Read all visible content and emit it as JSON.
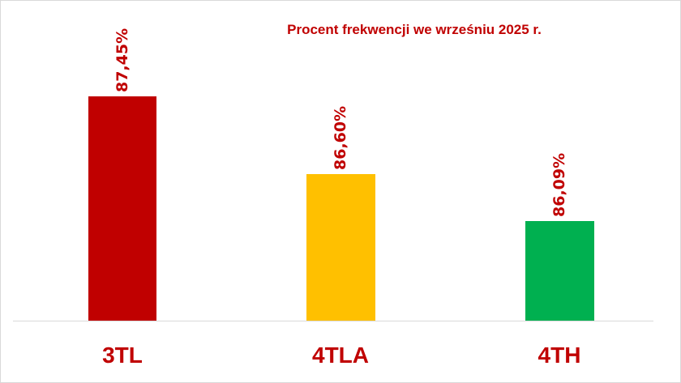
{
  "chart_data": {
    "type": "bar",
    "title": "Procent frekwencji we wrześniu 2025  r.",
    "categories": [
      "3TL",
      "4TLA",
      "4TH"
    ],
    "values": [
      87.45,
      86.6,
      86.09
    ],
    "value_labels": [
      "87,45%",
      "86,60%",
      "86,09%"
    ],
    "colors": [
      "#c00000",
      "#ffc000",
      "#00b050"
    ],
    "xlabel": "",
    "ylabel": "",
    "ylim": [
      85,
      88
    ],
    "grid": false,
    "legend": "none",
    "axis_visible": false
  },
  "colors": {
    "text_accent": "#c00000",
    "baseline": "#d9d9d9"
  }
}
